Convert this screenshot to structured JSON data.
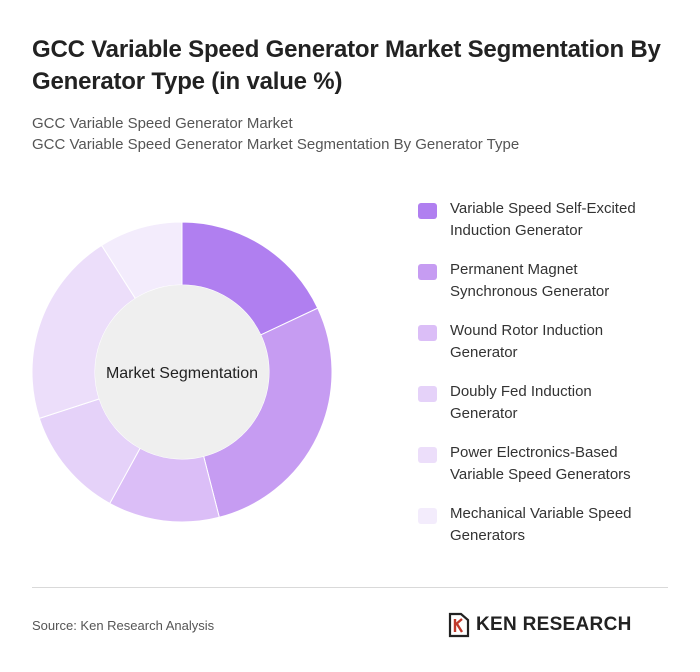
{
  "header": {
    "title": "GCC Variable Speed Generator Market Segmentation By Generator Type (in value %)",
    "subtitle_line1": "GCC Variable Speed Generator Market",
    "subtitle_line2": "GCC Variable Speed Generator Market Segmentation By Generator Type"
  },
  "chart_data": {
    "type": "pie",
    "center_label": "Market Segmentation",
    "categories": [
      "Variable Speed Self-Excited Induction Generator",
      "Permanent Magnet Synchronous Generator",
      "Wound Rotor Induction Generator",
      "Doubly Fed Induction Generator",
      "Power Electronics-Based Variable Speed Generators",
      "Mechanical Variable Speed Generators"
    ],
    "values": [
      18,
      28,
      12,
      12,
      21,
      9
    ],
    "colors": [
      "#b07ff0",
      "#c69cf2",
      "#dbbef7",
      "#e5d2f9",
      "#ecdefa",
      "#f3ecfc"
    ],
    "legend_position": "right"
  },
  "footer": {
    "source": "Source: Ken Research Analysis",
    "brand": "KEN RESEARCH"
  }
}
